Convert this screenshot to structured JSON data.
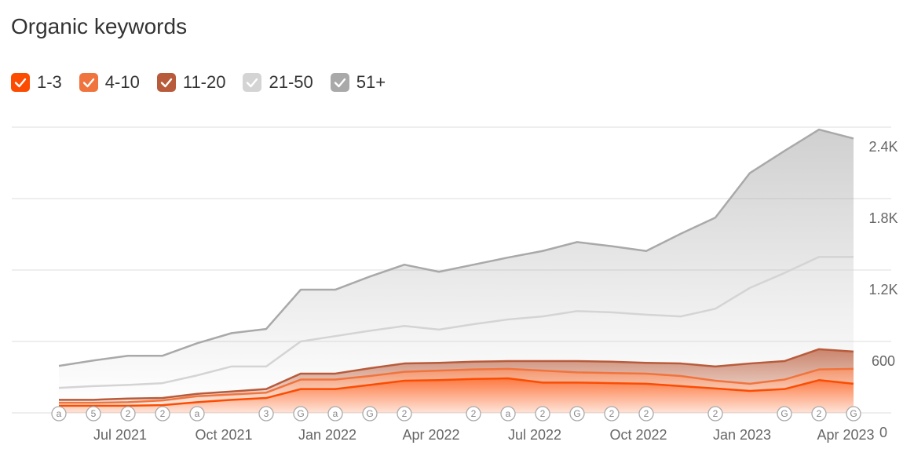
{
  "chart_data": {
    "type": "stacked-area",
    "title": "Organic keywords",
    "categories": [
      null,
      null,
      "Jul 2021",
      null,
      null,
      "Oct 2021",
      null,
      null,
      "Jan 2022",
      null,
      null,
      "Apr 2022",
      null,
      null,
      "Jul 2022",
      null,
      null,
      "Oct 2022",
      null,
      null,
      "Jan 2023",
      null,
      null,
      "Apr 2023"
    ],
    "series": [
      {
        "name": "1-3",
        "color": "#fc4c02",
        "values": [
          60,
          60,
          60,
          65,
          90,
          110,
          125,
          200,
          200,
          235,
          270,
          275,
          285,
          290,
          255,
          255,
          250,
          245,
          225,
          205,
          185,
          200,
          275,
          245
        ]
      },
      {
        "name": "4-10",
        "color": "#f0743e",
        "values": [
          25,
          25,
          30,
          40,
          50,
          45,
          45,
          80,
          80,
          75,
          75,
          80,
          80,
          80,
          100,
          85,
          85,
          85,
          85,
          65,
          60,
          80,
          90,
          125
        ]
      },
      {
        "name": "11-20",
        "color": "#b85b3b",
        "values": [
          25,
          25,
          30,
          20,
          20,
          25,
          30,
          50,
          50,
          65,
          70,
          65,
          65,
          65,
          80,
          95,
          95,
          90,
          105,
          120,
          170,
          155,
          170,
          145
        ]
      },
      {
        "name": "21-50",
        "color": "#d4d4d4",
        "values": [
          100,
          115,
          115,
          125,
          155,
          210,
          190,
          270,
          315,
          315,
          315,
          280,
          315,
          350,
          375,
          420,
          415,
          405,
          395,
          485,
          635,
          740,
          775,
          795
        ]
      },
      {
        "name": "51+",
        "color": "#a9a9a9",
        "values": [
          185,
          215,
          245,
          230,
          270,
          280,
          315,
          435,
          390,
          455,
          515,
          485,
          500,
          520,
          550,
          580,
          555,
          535,
          695,
          765,
          965,
          1025,
          1070,
          995
        ]
      }
    ],
    "events": [
      "a",
      "5",
      "2",
      "2",
      "a",
      null,
      "3",
      "G",
      "a",
      "G",
      "2",
      null,
      "2",
      "a",
      "2",
      "G",
      "2",
      "2",
      null,
      "2",
      null,
      "G",
      "2",
      "G"
    ],
    "ylim": [
      0,
      2400
    ],
    "yticks": [
      0,
      600,
      {
        "value": 1200,
        "label": "1.2K"
      },
      {
        "value": 1800,
        "label": "1.8K"
      },
      {
        "value": 2400,
        "label": "2.4K"
      }
    ],
    "grid": true
  }
}
